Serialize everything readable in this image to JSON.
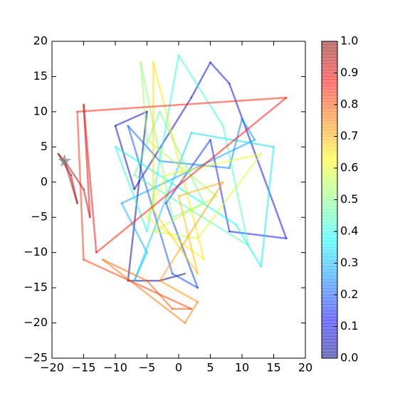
{
  "chart_data": {
    "type": "trajectory",
    "colormap": "jet",
    "alpha": 0.5,
    "x": [
      1,
      -3,
      -8,
      -5,
      -10,
      -7,
      2,
      5,
      8,
      17,
      8,
      5,
      -2,
      3,
      -1,
      -8,
      -3,
      8,
      10,
      12,
      -9,
      -5,
      -7,
      2,
      15,
      13,
      9,
      -10,
      -5,
      0,
      7,
      11,
      -7,
      -3,
      4,
      -1,
      -6,
      -5,
      6,
      -4,
      3,
      13,
      -2,
      -5,
      4,
      -4,
      -4,
      3,
      0,
      7,
      -3,
      3,
      1,
      -12,
      -5,
      -1,
      2,
      -15,
      -16,
      17,
      -13,
      -15,
      -14,
      -15,
      -18,
      -16,
      -17,
      -19,
      -18
    ],
    "y": [
      -13,
      -14,
      -14,
      10,
      8,
      -1,
      12,
      17,
      14,
      -8,
      -7,
      6,
      -3,
      -15,
      -13,
      8,
      3,
      2,
      9,
      6,
      -3,
      -10,
      -14,
      7,
      5,
      -12,
      -6,
      5,
      -7,
      18,
      8,
      -9,
      1,
      10,
      -3,
      -5,
      17,
      6,
      -2,
      -7,
      -8,
      4,
      1,
      -5,
      -11,
      17,
      -4,
      -13,
      -2,
      0,
      -14,
      -17,
      -20,
      -11,
      -14,
      -18,
      -18,
      -11,
      10,
      12,
      -10,
      11,
      -5,
      -1,
      3,
      -3,
      1,
      4,
      3
    ],
    "end_marker": "star",
    "xlim": [
      -20,
      20
    ],
    "ylim": [
      -25,
      20
    ],
    "xticks": [
      {
        "value": -20,
        "label": "−20"
      },
      {
        "value": -15,
        "label": "−15"
      },
      {
        "value": -10,
        "label": "−10"
      },
      {
        "value": -5,
        "label": "−5"
      },
      0,
      5,
      10,
      15,
      20
    ],
    "yticks": [
      {
        "value": -25,
        "label": "−25"
      },
      {
        "value": -20,
        "label": "−20"
      },
      {
        "value": -15,
        "label": "−15"
      },
      {
        "value": -10,
        "label": "−10"
      },
      {
        "value": -5,
        "label": "−5"
      },
      0,
      5,
      10,
      15,
      20
    ],
    "clim": [
      0,
      1
    ],
    "cticks": [
      {
        "value": 0,
        "label": "0.0"
      },
      {
        "value": 0.1,
        "label": "0.1"
      },
      {
        "value": 0.2,
        "label": "0.2"
      },
      {
        "value": 0.3,
        "label": "0.3"
      },
      {
        "value": 0.4,
        "label": "0.4"
      },
      {
        "value": 0.5,
        "label": "0.5"
      },
      {
        "value": 0.6,
        "label": "0.6"
      },
      {
        "value": 0.7,
        "label": "0.7"
      },
      {
        "value": 0.8,
        "label": "0.8"
      },
      {
        "value": 0.9,
        "label": "0.9"
      },
      {
        "value": 1,
        "label": "1.0"
      }
    ]
  }
}
